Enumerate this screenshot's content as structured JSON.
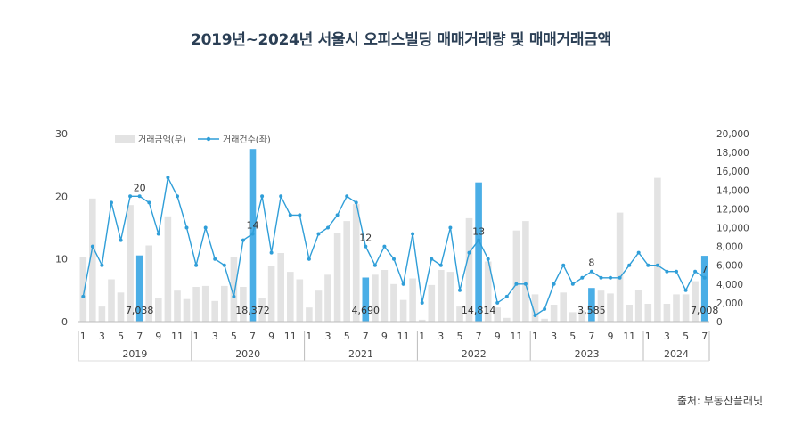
{
  "title": "2019년~2024년 서울시 오피스빌딩 매매거래량 및 매매거래금액",
  "source": "출처: 부동산플래닛",
  "chart_data": {
    "type": "bar",
    "title": "2019년~2024년 서울시 오피스빌딩 매매거래량 및 매매거래금액",
    "x_tick_labels": [
      "1",
      "3",
      "5",
      "7",
      "9",
      "11",
      "1",
      "3",
      "5",
      "7",
      "9",
      "11",
      "1",
      "3",
      "5",
      "7",
      "9",
      "11",
      "1",
      "3",
      "5",
      "7",
      "9",
      "11",
      "1",
      "3",
      "5",
      "7",
      "9",
      "11",
      "1",
      "3",
      "5",
      "7"
    ],
    "years": [
      {
        "label": "2019",
        "months": 12
      },
      {
        "label": "2020",
        "months": 12
      },
      {
        "label": "2021",
        "months": 12
      },
      {
        "label": "2022",
        "months": 12
      },
      {
        "label": "2023",
        "months": 12
      },
      {
        "label": "2024",
        "months": 7
      }
    ],
    "left_axis": {
      "min": 0,
      "max": 30,
      "ticks": [
        "0",
        "10",
        "20",
        "30"
      ]
    },
    "right_axis": {
      "min": 0,
      "max": 20000,
      "ticks": [
        "0",
        "2,000",
        "4,000",
        "6,000",
        "8,000",
        "10,000",
        "12,000",
        "14,000",
        "16,000",
        "18,000",
        "20,000"
      ]
    },
    "legend": {
      "position": "top-left",
      "amount_label": "거래금액(우)",
      "count_label": "거래건수(좌)"
    },
    "highlight_color": "#4aaee6",
    "bar_color": "#e3e3e3",
    "line_color": "#2f9ed8",
    "series": [
      {
        "name": "거래금액(우)",
        "axis": "right",
        "values": [
          6900,
          13100,
          1600,
          4500,
          3100,
          12400,
          7038,
          8100,
          2500,
          11200,
          3300,
          2400,
          3700,
          3800,
          2200,
          3800,
          6900,
          3700,
          18372,
          2500,
          5900,
          7300,
          5300,
          4500,
          1500,
          3300,
          5000,
          9400,
          10700,
          12500,
          4690,
          5000,
          5500,
          4000,
          2300,
          4600,
          200,
          3900,
          5500,
          5300,
          1600,
          11000,
          14814,
          6400,
          1500,
          400,
          9700,
          10700,
          2900,
          300,
          1800,
          3100,
          1000,
          1200,
          3585,
          3300,
          3000,
          11600,
          1800,
          3400,
          1900,
          15300,
          1900,
          2900,
          2900,
          4300,
          7008
        ]
      },
      {
        "name": "거래건수(좌)",
        "axis": "left",
        "values": [
          4,
          12,
          9,
          19,
          13,
          20,
          20,
          19,
          14,
          23,
          20,
          15,
          9,
          15,
          10,
          9,
          4,
          13,
          14,
          20,
          11,
          20,
          17,
          17,
          10,
          14,
          15,
          17,
          20,
          19,
          12,
          9,
          12,
          10,
          6,
          14,
          3,
          10,
          9,
          15,
          5,
          11,
          13,
          10,
          3,
          4,
          6,
          6,
          1,
          2,
          6,
          9,
          6,
          7,
          8,
          7,
          7,
          7,
          9,
          11,
          9,
          9,
          8,
          8,
          5,
          8,
          7
        ]
      }
    ],
    "highlight_labels": [
      "7,038",
      "18,372",
      "4,690",
      "14,814",
      "3,585",
      "7,008"
    ],
    "count_annotations": [
      "20",
      "14",
      "12",
      "13",
      "8",
      "7"
    ]
  }
}
